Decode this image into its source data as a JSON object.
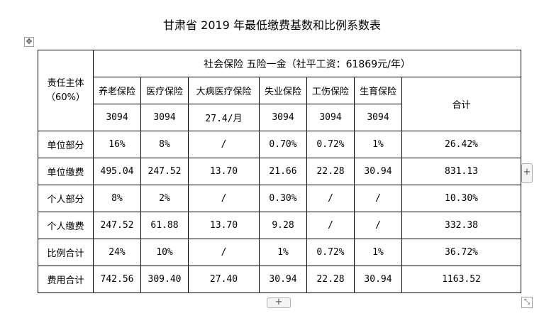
{
  "title": "甘肃省 2019 年最低缴费基数和比例系数表",
  "icons": {
    "move": "move-icon",
    "add_column": "plus-icon",
    "add_row": "plus-icon",
    "resize": "resize-icon"
  },
  "table": {
    "subject_header": [
      "责任主体",
      "（60%）"
    ],
    "banner": "社会保险 五险一金（社平工资：61869元/年）",
    "columns": [
      "养老保险",
      "医疗保险",
      "大病医疗保险",
      "失业保险",
      "工伤保险",
      "生育保险"
    ],
    "total_header": "合计",
    "bases": [
      "3094",
      "3094",
      "27.4/月",
      "3094",
      "3094",
      "3094"
    ],
    "rows": [
      {
        "label": "单位部分",
        "cells": [
          "16%",
          "8%",
          "/",
          "0.70%",
          "0.72%",
          "1%"
        ],
        "total": "26.42%"
      },
      {
        "label": "单位缴费",
        "cells": [
          "495.04",
          "247.52",
          "13.70",
          "21.66",
          "22.28",
          "30.94"
        ],
        "total": "831.13"
      },
      {
        "label": "个人部分",
        "cells": [
          "8%",
          "2%",
          "/",
          "0.30%",
          "/",
          "/"
        ],
        "total": "10.30%"
      },
      {
        "label": "个人缴费",
        "cells": [
          "247.52",
          "61.88",
          "13.70",
          "9.28",
          "/",
          "/"
        ],
        "total": "332.38"
      },
      {
        "label": "比例合计",
        "cells": [
          "24%",
          "10%",
          "/",
          "1%",
          "0.72%",
          "1%"
        ],
        "total": "36.72%"
      },
      {
        "label": "费用合计",
        "cells": [
          "742.56",
          "309.40",
          "27.40",
          "30.94",
          "22.28",
          "30.94"
        ],
        "total": "1163.52"
      }
    ]
  }
}
